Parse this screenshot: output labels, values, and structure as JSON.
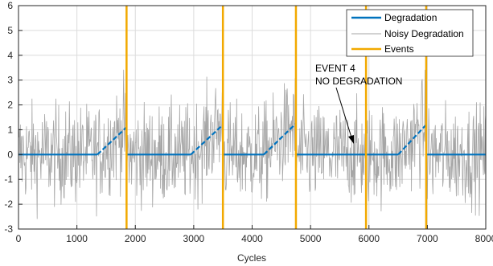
{
  "chart_data": {
    "type": "line",
    "xlabel": "Cycles",
    "ylabel": "",
    "xlim": [
      0,
      8000
    ],
    "ylim": [
      -3,
      6
    ],
    "xticks": [
      0,
      1000,
      2000,
      3000,
      4000,
      5000,
      6000,
      7000,
      8000
    ],
    "yticks": [
      -3,
      -2,
      -1,
      0,
      1,
      2,
      3,
      4,
      5,
      6
    ],
    "grid": true,
    "legend_position": "top-right",
    "colors": {
      "degradation": "#0072BD",
      "noisy": "#A6A6A6",
      "events": "#F2A900"
    },
    "series": [
      {
        "name": "Degradation",
        "x": [
          0,
          1350,
          1850,
          1851,
          2950,
          3500,
          3501,
          4200,
          4750,
          4751,
          6500,
          6980,
          6981,
          8000
        ],
        "y": [
          0,
          0,
          1.1,
          0,
          0,
          1.2,
          0,
          0,
          1.25,
          0,
          0,
          1.2,
          0,
          0
        ]
      },
      {
        "name": "Noisy Degradation",
        "noise_amplitude": 1.0,
        "baseline": "Degradation"
      },
      {
        "name": "Events",
        "x": [
          1850,
          3500,
          4750,
          5950,
          6980
        ]
      }
    ],
    "annotations": [
      {
        "lines": [
          "EVENT 4",
          "NO DEGRADATION"
        ],
        "text_at": [
          5000,
          2.95
        ],
        "arrow_to": [
          5880,
          0.45
        ]
      }
    ]
  }
}
